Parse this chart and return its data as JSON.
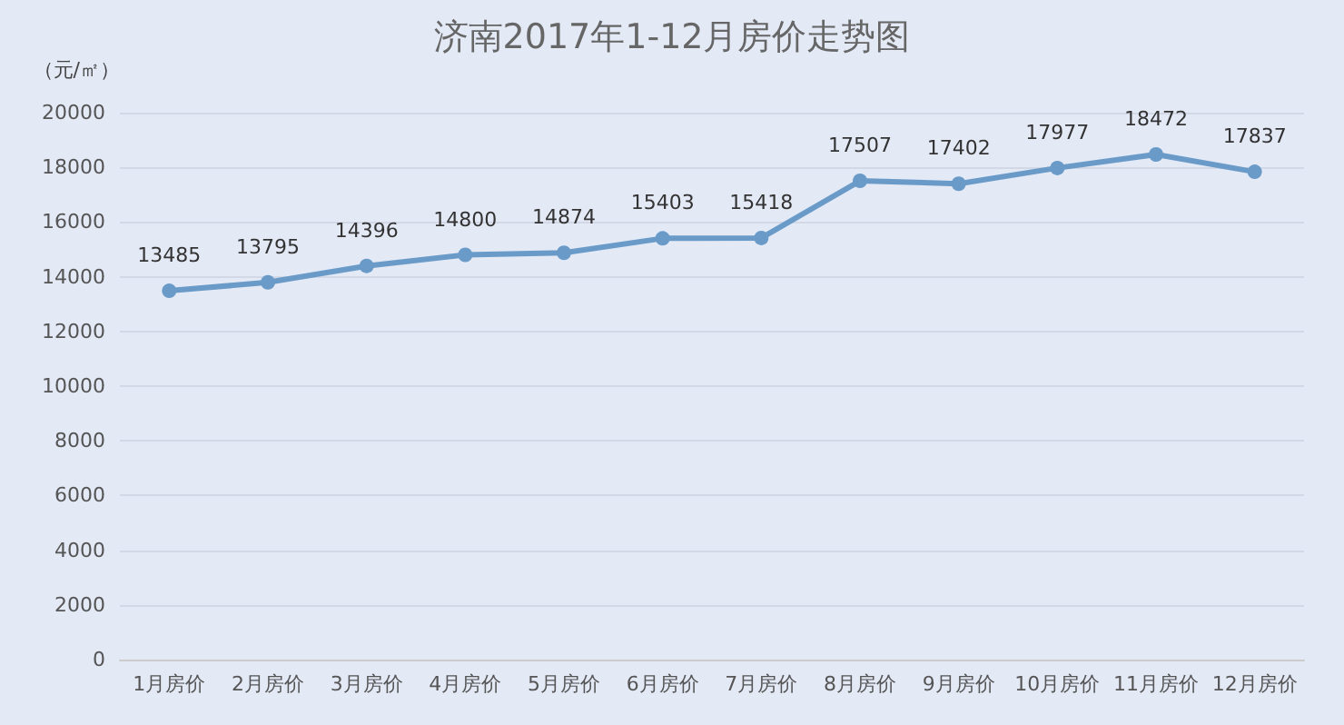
{
  "chart_data": {
    "type": "line",
    "title": "济南2017年1-12月房价走势图",
    "ylabel": "（元/㎡）",
    "categories": [
      "1月房价",
      "2月房价",
      "3月房价",
      "4月房价",
      "5月房价",
      "6月房价",
      "7月房价",
      "8月房价",
      "9月房价",
      "10月房价",
      "11月房价",
      "12月房价"
    ],
    "series": [
      {
        "color": "#6a9bc8",
        "values": [
          13485,
          13795,
          14396,
          14800,
          14874,
          15403,
          15418,
          17507,
          17402,
          17977,
          18472,
          17837
        ]
      }
    ],
    "ylim": [
      0,
      20000
    ],
    "yticks": [
      0,
      2000,
      4000,
      6000,
      8000,
      10000,
      12000,
      14000,
      16000,
      18000,
      20000
    ],
    "grid": "y",
    "marker": "circle",
    "line_style": "solid",
    "data_labels": true
  }
}
